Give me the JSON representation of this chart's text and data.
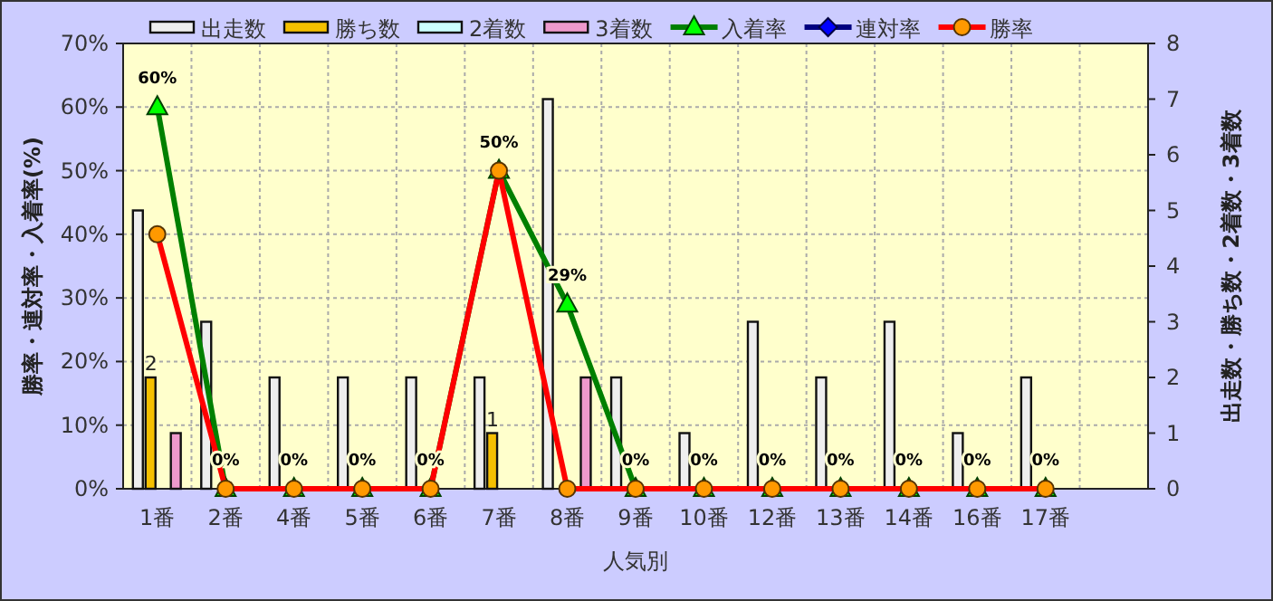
{
  "chart_data": {
    "type": "bar",
    "xlabel": "人気別",
    "ylabel": "勝率・連対率・入着率(%)",
    "y2label": "出走数・勝ち数・2着数・3着数",
    "categories": [
      "1番",
      "2番",
      "4番",
      "5番",
      "6番",
      "7番",
      "8番",
      "9番",
      "10番",
      "12番",
      "13番",
      "14番",
      "16番",
      "17番",
      null
    ],
    "ylim": [
      0,
      70
    ],
    "yticks": [
      {
        "value": 0,
        "label": "0%"
      },
      {
        "value": 10,
        "label": "10%"
      },
      {
        "value": 20,
        "label": "20%"
      },
      {
        "value": 30,
        "label": "30%"
      },
      {
        "value": 40,
        "label": "40%"
      },
      {
        "value": 50,
        "label": "50%"
      },
      {
        "value": 60,
        "label": "60%"
      },
      {
        "value": 70,
        "label": "70%"
      }
    ],
    "y2lim": [
      0,
      8
    ],
    "y2ticks": [
      0,
      1,
      2,
      3,
      4,
      5,
      6,
      7,
      8
    ],
    "grid": true,
    "legend": "top",
    "series": [
      {
        "name": "出走数",
        "axis": "y2",
        "color": "#eeeeee",
        "values": [
          5,
          3,
          2,
          2,
          2,
          2,
          7,
          2,
          1,
          3,
          2,
          3,
          1,
          2,
          null
        ]
      },
      {
        "name": "勝ち数",
        "axis": "y2",
        "color": "#f5c000",
        "values": [
          2,
          0,
          0,
          0,
          0,
          1,
          0,
          0,
          0,
          0,
          0,
          0,
          0,
          0,
          null
        ],
        "value_labels": [
          "2",
          null,
          null,
          null,
          null,
          "1",
          null,
          null,
          null,
          null,
          null,
          null,
          null,
          null,
          null
        ]
      },
      {
        "name": "2着数",
        "axis": "y2",
        "color": "#ccffff",
        "values": [
          0,
          0,
          0,
          0,
          0,
          0,
          0,
          0,
          0,
          0,
          0,
          0,
          0,
          0,
          null
        ]
      },
      {
        "name": "3着数",
        "axis": "y2",
        "color": "#ee99cc",
        "values": [
          1,
          0,
          0,
          0,
          0,
          0,
          2,
          0,
          0,
          0,
          0,
          0,
          0,
          0,
          null
        ]
      },
      {
        "name": "入着率",
        "type": "line",
        "axis": "y",
        "color": "#008000",
        "marker": "triangle",
        "values": [
          60,
          0,
          0,
          0,
          0,
          50,
          29,
          0,
          0,
          0,
          0,
          0,
          0,
          0,
          null
        ],
        "value_labels": [
          "60%",
          "0%",
          "0%",
          "0%",
          "0%",
          "50%",
          "29%",
          "0%",
          "0%",
          "0%",
          "0%",
          "0%",
          "0%",
          "0%",
          null
        ]
      },
      {
        "name": "連対率",
        "type": "line",
        "axis": "y",
        "color": "#000080",
        "marker": "diamond",
        "values": [
          null,
          null,
          null,
          null,
          null,
          null,
          null,
          null,
          null,
          null,
          null,
          null,
          null,
          null,
          null
        ]
      },
      {
        "name": "勝率",
        "type": "line",
        "axis": "y",
        "color": "#ff0000",
        "marker": "circle",
        "values": [
          40,
          0,
          0,
          0,
          0,
          50,
          0,
          0,
          0,
          0,
          0,
          0,
          0,
          0,
          null
        ]
      }
    ]
  }
}
